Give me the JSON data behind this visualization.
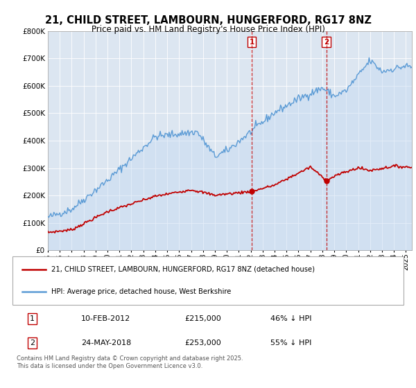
{
  "title": "21, CHILD STREET, LAMBOURN, HUNGERFORD, RG17 8NZ",
  "subtitle": "Price paid vs. HM Land Registry's House Price Index (HPI)",
  "legend_line1": "21, CHILD STREET, LAMBOURN, HUNGERFORD, RG17 8NZ (detached house)",
  "legend_line2": "HPI: Average price, detached house, West Berkshire",
  "footnote": "Contains HM Land Registry data © Crown copyright and database right 2025.\nThis data is licensed under the Open Government Licence v3.0.",
  "purchase1_date": "10-FEB-2012",
  "purchase1_price": 215000,
  "purchase1_label": "£215,000",
  "purchase1_pct": "46% ↓ HPI",
  "purchase2_date": "24-MAY-2018",
  "purchase2_price": 253000,
  "purchase2_label": "£253,000",
  "purchase2_pct": "55% ↓ HPI",
  "hpi_color": "#5b9bd5",
  "hpi_fill": "#c5d9f1",
  "price_color": "#c00000",
  "vline_color": "#c00000",
  "bg_color": "#ffffff",
  "plot_bg": "#dce6f1",
  "grid_color": "#ffffff",
  "ylim": [
    0,
    800000
  ],
  "yticks": [
    0,
    100000,
    200000,
    300000,
    400000,
    500000,
    600000,
    700000,
    800000
  ],
  "xlim_start": 1995,
  "xlim_end": 2025.5
}
